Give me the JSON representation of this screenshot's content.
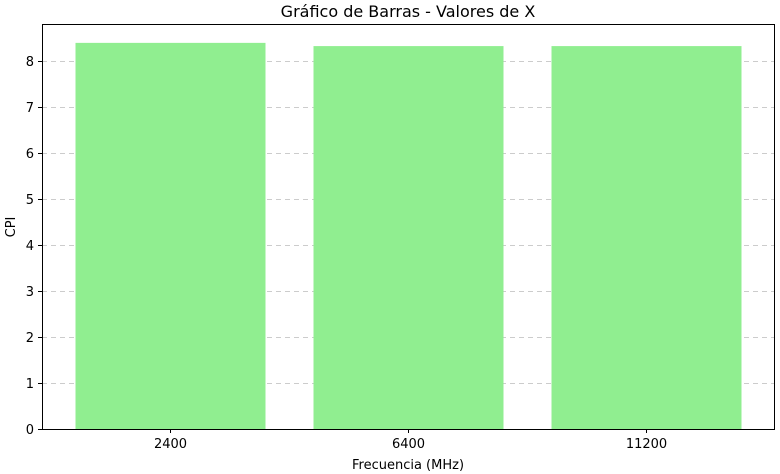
{
  "chart_data": {
    "type": "bar",
    "title": "Gráfico de Barras - Valores de X",
    "xlabel": "Frecuencia (MHz)",
    "ylabel": "CPI",
    "categories": [
      "2400",
      "6400",
      "11200"
    ],
    "values": [
      8.39,
      8.32,
      8.32
    ],
    "ylim": [
      0,
      8.8
    ],
    "yticks": [
      "0",
      "1",
      "2",
      "3",
      "4",
      "5",
      "6",
      "7",
      "8"
    ],
    "grid": "y-dashed",
    "bar_color": "#90ee90",
    "legend": "none"
  }
}
